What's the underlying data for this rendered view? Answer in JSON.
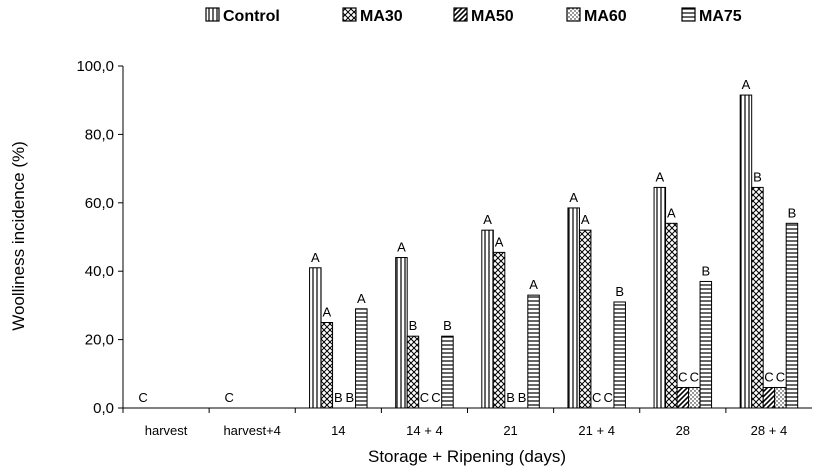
{
  "chart_data": {
    "type": "bar",
    "ylabel": "Woolliness incidence (%)",
    "xlabel": "Storage + Ripening  (days)",
    "ylim": [
      0,
      100
    ],
    "yticks": [
      "0,0",
      "20,0",
      "40,0",
      "60,0",
      "80,0",
      "100,0"
    ],
    "legend_position": "top",
    "categories": [
      "harvest",
      "harvest+4",
      "14",
      "14 + 4",
      "21",
      "21 + 4",
      "28",
      "28 + 4"
    ],
    "series": [
      {
        "name": "Control",
        "values": [
          0,
          0,
          41,
          44,
          52,
          58.5,
          64.5,
          91.5
        ],
        "letters": [
          "C",
          "C",
          "A",
          "A",
          "A",
          "A",
          "A",
          "A"
        ]
      },
      {
        "name": "MA30",
        "values": [
          0,
          0,
          25,
          21,
          45.5,
          52,
          54,
          64.5
        ],
        "letters": [
          "",
          "",
          "A",
          "B",
          "A",
          "A",
          "A",
          "B"
        ]
      },
      {
        "name": "MA50",
        "values": [
          0,
          0,
          0,
          0,
          0,
          0,
          6,
          6
        ],
        "letters": [
          "",
          "",
          "B",
          "C",
          "B",
          "C",
          "C",
          "C"
        ]
      },
      {
        "name": "MA60",
        "values": [
          0,
          0,
          0,
          0,
          0,
          0,
          6,
          6
        ],
        "letters": [
          "",
          "",
          "B",
          "C",
          "B",
          "C",
          "C",
          "C"
        ]
      },
      {
        "name": "MA75",
        "values": [
          0,
          0,
          29,
          21,
          33,
          31,
          37,
          54
        ],
        "letters": [
          "",
          "",
          "A",
          "B",
          "A",
          "B",
          "B",
          "B"
        ]
      }
    ]
  }
}
